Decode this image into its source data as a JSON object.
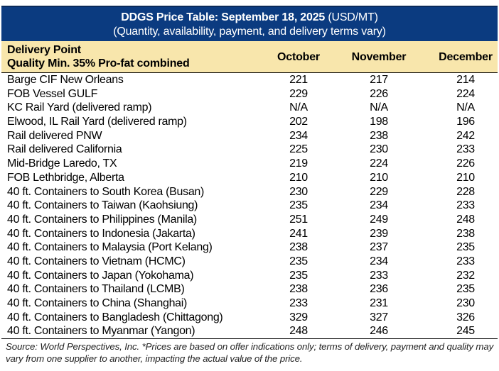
{
  "title": {
    "bold": "DDGS Price Table: September 18, 2025",
    "unit": " (USD/MT)",
    "subtitle": "(Quantity, availability, payment, and delivery terms vary)"
  },
  "header": {
    "delivery_point": "Delivery Point",
    "quality": "Quality Min. 35% Pro-fat combined",
    "months": [
      "October",
      "November",
      "December"
    ]
  },
  "rows": [
    {
      "label": "Barge CIF New Orleans",
      "values": [
        "221",
        "217",
        "214"
      ]
    },
    {
      "label": "FOB Vessel GULF",
      "values": [
        "229",
        "226",
        "224"
      ]
    },
    {
      "label": "KC Rail Yard (delivered ramp)",
      "values": [
        "N/A",
        "N/A",
        "N/A"
      ]
    },
    {
      "label": "Elwood, IL Rail Yard (delivered ramp)",
      "values": [
        "202",
        "198",
        "196"
      ]
    },
    {
      "label": "Rail delivered PNW",
      "values": [
        "234",
        "238",
        "242"
      ]
    },
    {
      "label": "Rail delivered California",
      "values": [
        "225",
        "230",
        "233"
      ]
    },
    {
      "label": "Mid-Bridge Laredo, TX",
      "values": [
        "219",
        "224",
        "226"
      ]
    },
    {
      "label": "FOB Lethbridge, Alberta",
      "values": [
        "210",
        "210",
        "210"
      ]
    },
    {
      "label": "40 ft. Containers to South Korea (Busan)",
      "values": [
        "230",
        "229",
        "228"
      ]
    },
    {
      "label": "40 ft. Containers to Taiwan (Kaohsiung)",
      "values": [
        "235",
        "234",
        "233"
      ]
    },
    {
      "label": "40 ft. Containers to Philippines (Manila)",
      "values": [
        "251",
        "249",
        "248"
      ]
    },
    {
      "label": "40 ft. Containers to Indonesia (Jakarta)",
      "values": [
        "241",
        "239",
        "238"
      ]
    },
    {
      "label": "40 ft. Containers to Malaysia (Port Kelang)",
      "values": [
        "238",
        "237",
        "235"
      ]
    },
    {
      "label": "40 ft. Containers to Vietnam (HCMC)",
      "values": [
        "235",
        "234",
        "233"
      ]
    },
    {
      "label": "40 ft. Containers to Japan (Yokohama)",
      "values": [
        "235",
        "233",
        "232"
      ]
    },
    {
      "label": "40 ft. Containers to Thailand (LCMB)",
      "values": [
        "238",
        "236",
        "235"
      ]
    },
    {
      "label": "40 ft. Containers to China (Shanghai)",
      "values": [
        "233",
        "231",
        "230"
      ]
    },
    {
      "label": "40 ft. Containers to Bangladesh (Chittagong)",
      "values": [
        "329",
        "327",
        "326"
      ]
    },
    {
      "label": "40 ft. Containers to Myanmar (Yangon)",
      "values": [
        "248",
        "246",
        "245"
      ]
    }
  ],
  "footer": "Source: World Perspectives, Inc. *Prices are based on offer indications only; terms of delivery, payment and quality may vary from one supplier to another, impacting the actual value of the price."
}
